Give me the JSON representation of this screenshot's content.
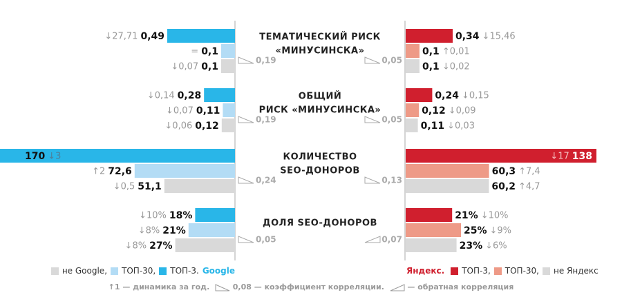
{
  "groups": [
    {
      "title": [
        "ТЕМАТИЧЕСКИЙ РИСК",
        "«МИНУСИНСКА»"
      ],
      "google": {
        "values": [
          0.49,
          0.1,
          0.1
        ],
        "value_labels": [
          "0,49",
          "0,1",
          "0,1"
        ],
        "deltas": [
          "↓27,71",
          "=",
          "↓0,07"
        ],
        "correlation": "0,19"
      },
      "yandex": {
        "values": [
          0.34,
          0.1,
          0.1
        ],
        "value_labels": [
          "0,34",
          "0,1",
          "0,1"
        ],
        "deltas": [
          "↓15,46",
          "↑0,01",
          "↓0,02"
        ],
        "correlation": "0,05"
      }
    },
    {
      "title": [
        "ОБЩИЙ",
        "РИСК «МИНУСИНСКА»"
      ],
      "google": {
        "values": [
          0.28,
          0.11,
          0.12
        ],
        "value_labels": [
          "0,28",
          "0,11",
          "0,12"
        ],
        "deltas": [
          "↓0,14",
          "↓0,07",
          "↓0,06"
        ],
        "correlation": "0,19"
      },
      "yandex": {
        "values": [
          0.24,
          0.12,
          0.11
        ],
        "value_labels": [
          "0,24",
          "0,12",
          "0,11"
        ],
        "deltas": [
          "↓0,15",
          "↓0,09",
          "↓0,03"
        ],
        "correlation": "0,05"
      }
    },
    {
      "title": [
        "КОЛИЧЕСТВО",
        "SEO-ДОНОРОВ"
      ],
      "google": {
        "values": [
          170,
          72.6,
          51.1
        ],
        "value_labels": [
          "170",
          "72,6",
          "51,1"
        ],
        "deltas": [
          "↓3",
          "↑2",
          "↓0,5"
        ],
        "correlation": "0,24"
      },
      "yandex": {
        "values": [
          138,
          60.3,
          60.2
        ],
        "value_labels": [
          "138",
          "60,3",
          "60,2"
        ],
        "deltas": [
          "↓17",
          "↑7,4",
          "↑4,7"
        ],
        "correlation": "0,13"
      }
    },
    {
      "title": [
        "ДОЛЯ SEO-ДОНОРОВ"
      ],
      "google": {
        "values": [
          18,
          21,
          27
        ],
        "value_labels": [
          "18%",
          "21%",
          "27%"
        ],
        "deltas": [
          "↓10%",
          "↓8%",
          "↓8%"
        ],
        "correlation": "0,05"
      },
      "yandex": {
        "values": [
          21,
          25,
          23
        ],
        "value_labels": [
          "21%",
          "25%",
          "23%"
        ],
        "deltas": [
          "↓10%",
          "↓9%",
          "↓6%"
        ],
        "correlation": "0,07",
        "correlation_reverse": true
      }
    }
  ],
  "colors": {
    "google": [
      "#29b6e8",
      "#b3dcf5",
      "#d9d9d9"
    ],
    "yandex": [
      "#d01f2e",
      "#ee9a87",
      "#d9d9d9"
    ]
  },
  "legend": {
    "google": {
      "brand": "Google",
      "items": [
        {
          "label": "не Google,",
          "color": "#d9d9d9"
        },
        {
          "label": "ТОП-30,",
          "color": "#b3dcf5"
        },
        {
          "label": "ТОП-3.",
          "color": "#29b6e8"
        }
      ]
    },
    "yandex": {
      "brand": "Яндекс.",
      "items": [
        {
          "label": "ТОП-3,",
          "color": "#d01f2e"
        },
        {
          "label": "ТОП-30,",
          "color": "#ee9a87"
        },
        {
          "label": "не Яндекс",
          "color": "#d9d9d9"
        }
      ]
    }
  },
  "footnote": {
    "dynamics": "↑1 — динамика за год.",
    "correlation": "0,08 — коэффициент корреляции.",
    "reverse": "— обратная корреляция"
  }
}
